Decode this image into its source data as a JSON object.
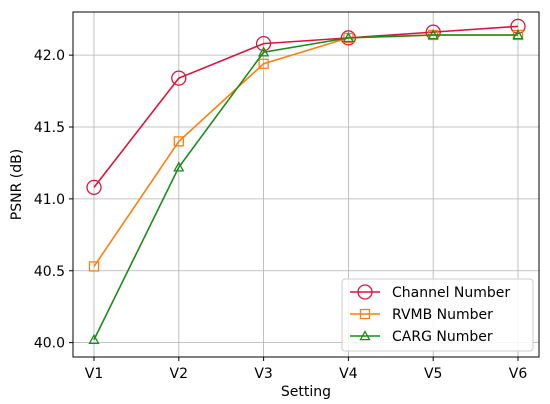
{
  "chart_data": {
    "type": "line",
    "title": "",
    "xlabel": "Setting",
    "ylabel": "PSNR (dB)",
    "categories": [
      "V1",
      "V2",
      "V3",
      "V4",
      "V5",
      "V6"
    ],
    "ylim": [
      39.9,
      42.3
    ],
    "yticks": [
      "40.0",
      "40.5",
      "41.0",
      "41.5",
      "42.0"
    ],
    "grid": true,
    "legend_position": "bottom-right",
    "series": [
      {
        "name": "Channel Number",
        "color": "#dc143c",
        "marker": "circle",
        "values": [
          41.08,
          41.84,
          42.08,
          42.12,
          42.16,
          42.2
        ]
      },
      {
        "name": "RVMB Number",
        "color": "#ff7f0e",
        "marker": "square",
        "values": [
          40.53,
          41.4,
          41.94,
          42.12,
          42.14,
          42.14
        ]
      },
      {
        "name": "CARG Number",
        "color": "#1a8c1a",
        "marker": "triangle",
        "values": [
          40.02,
          41.22,
          42.02,
          42.12,
          42.14,
          42.14
        ]
      }
    ]
  }
}
